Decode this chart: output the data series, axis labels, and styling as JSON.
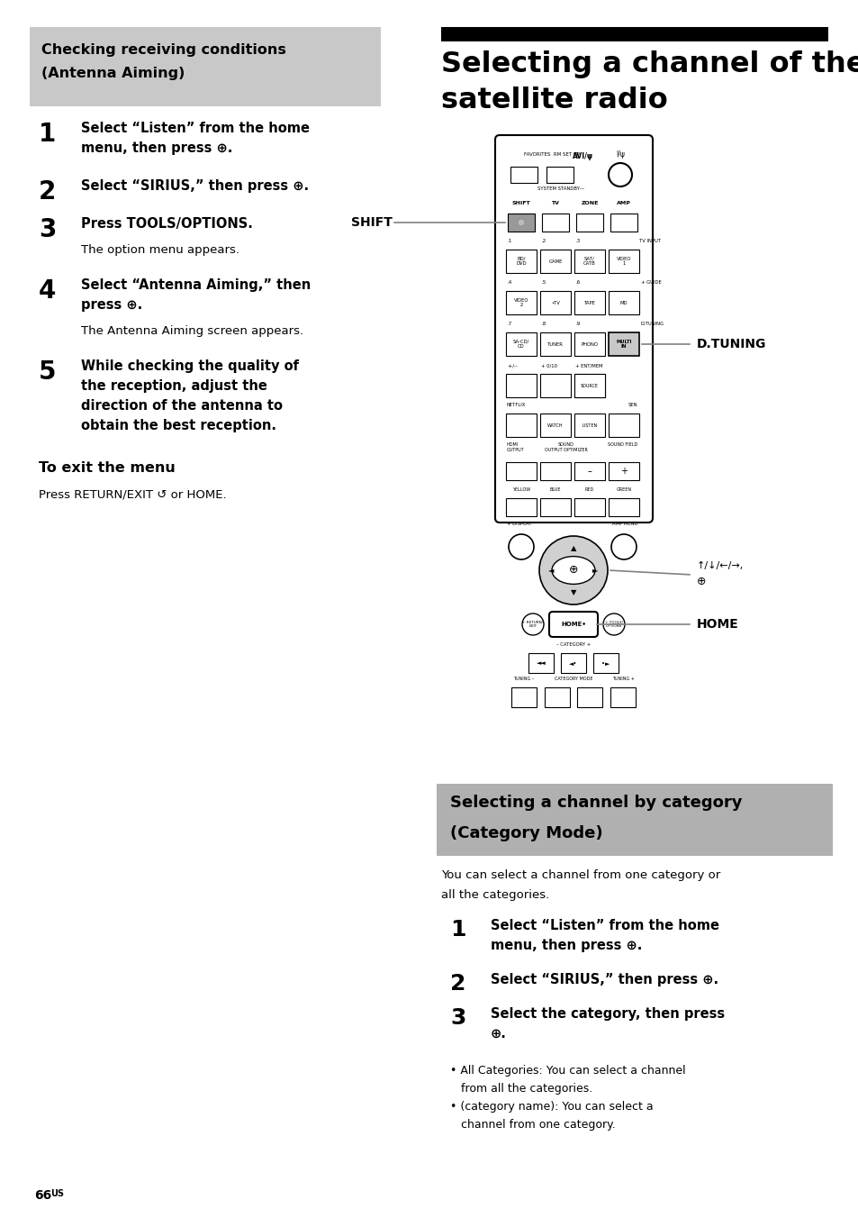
{
  "bg_color": "#ffffff",
  "left_header_bg": "#c8c8c8",
  "right_section_header_bg": "#b0b0b0",
  "page_num_bold": "66",
  "page_num_super": "US",
  "left_header_line1": "Checking receiving conditions",
  "left_header_line2": "(Antenna Aiming)",
  "right_title_line1": "Selecting a channel of the",
  "right_title_line2": "satellite radio",
  "left_steps": [
    {
      "num": "1",
      "bold": "Select “Listen” from the home menu, then press ⊕.",
      "lines": 2,
      "note": ""
    },
    {
      "num": "2",
      "bold": "Select “SIRIUS,” then press ⊕.",
      "lines": 1,
      "note": ""
    },
    {
      "num": "3",
      "bold": "Press TOOLS/OPTIONS.",
      "lines": 1,
      "note": "The option menu appears."
    },
    {
      "num": "4",
      "bold": "Select “Antenna Aiming,” then press ⊕.",
      "lines": 2,
      "note": "The Antenna Aiming screen appears."
    },
    {
      "num": "5",
      "bold": "While checking the quality of the reception, adjust the direction of the antenna to obtain the best reception.",
      "lines": 4,
      "note": ""
    }
  ],
  "exit_header": "To exit the menu",
  "exit_text": "Press RETURN/EXIT ↺ or HOME.",
  "right_section_header_line1": "Selecting a channel by category",
  "right_section_header_line2": "(Category Mode)",
  "right_section_intro_line1": "You can select a channel from one category or",
  "right_section_intro_line2": "all the categories.",
  "right_steps_bottom": [
    {
      "num": "1",
      "bold": "Select “Listen” from the home menu, then press ⊕.",
      "lines": 2
    },
    {
      "num": "2",
      "bold": "Select “SIRIUS,” then press ⊕.",
      "lines": 1
    },
    {
      "num": "3",
      "bold": "Select the category, then press ⊕.",
      "lines": 2
    }
  ],
  "bullet1_line1": "• All Categories: You can select a channel",
  "bullet1_line2": "   from all the categories.",
  "bullet2_line1": "• (category name): You can select a",
  "bullet2_line2": "   channel from one category.",
  "remote_labels_shift": "SHIFT",
  "remote_labels_dtuning": "D.TUNING",
  "remote_labels_home": "HOME",
  "remote_labels_arrows": "↑/↓/←/→,\n⊕"
}
